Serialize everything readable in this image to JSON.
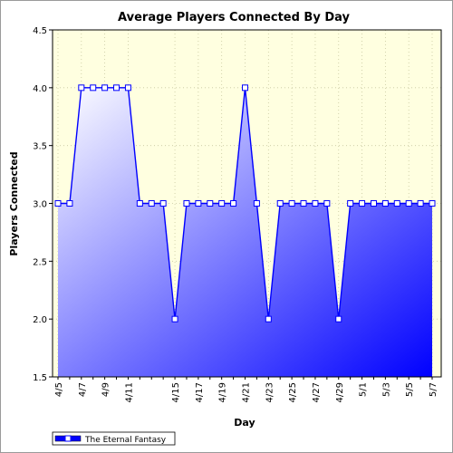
{
  "chart_data": {
    "type": "area",
    "title": "Average Players Connected By Day",
    "xlabel": "Day",
    "ylabel": "Players Connected",
    "ylim": [
      1.5,
      4.5
    ],
    "y_ticks": [
      "1.5",
      "2.0",
      "2.5",
      "3.0",
      "3.5",
      "4.0",
      "4.5"
    ],
    "x": [
      "4/5",
      "4/6",
      "4/7",
      "4/8",
      "4/9",
      "4/10",
      "4/11",
      "4/12",
      "4/13",
      "4/14",
      "4/15",
      "4/16",
      "4/17",
      "4/18",
      "4/19",
      "4/20",
      "4/21",
      "4/22",
      "4/23",
      "4/24",
      "4/25",
      "4/26",
      "4/27",
      "4/28",
      "4/29",
      "4/30",
      "5/1",
      "5/2",
      "5/3",
      "5/4",
      "5/5",
      "5/6",
      "5/7"
    ],
    "x_tick_labels": [
      "4/5",
      "4/7",
      "4/9",
      "4/11",
      "4/15",
      "4/17",
      "4/19",
      "4/21",
      "4/23",
      "4/25",
      "4/27",
      "4/29",
      "5/1",
      "5/3",
      "5/5",
      "5/7"
    ],
    "series": [
      {
        "name": "The Eternal Fantasy",
        "values": [
          3,
          3,
          4,
          4,
          4,
          4,
          4,
          3,
          3,
          3,
          2,
          3,
          3,
          3,
          3,
          3,
          4,
          3,
          2,
          3,
          3,
          3,
          3,
          3,
          2,
          3,
          3,
          3,
          3,
          3,
          3,
          3,
          3
        ]
      }
    ],
    "grid": true,
    "legend_position": "bottom-left",
    "colors": {
      "line": "#0000ff",
      "fill_light": "#ffffff",
      "fill_dark": "#0000ff",
      "plot_background": "#ffffe0"
    }
  }
}
